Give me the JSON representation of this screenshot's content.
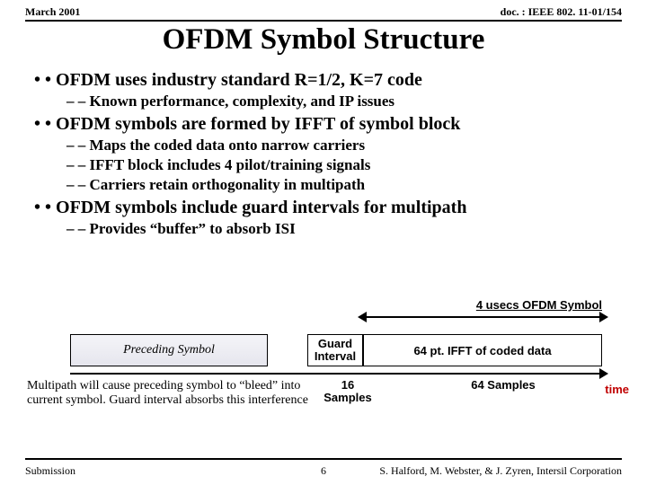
{
  "header": {
    "date": "March 2001",
    "doc": "doc. : IEEE 802. 11-01/154"
  },
  "title": "OFDM Symbol Structure",
  "bullets": {
    "b1_1": "OFDM uses industry standard R=1/2, K=7 code",
    "b2_1": "Known performance, complexity, and IP issues",
    "b1_2": "OFDM symbols are formed by IFFT of symbol block",
    "b2_2": "Maps the coded data onto narrow carriers",
    "b2_3": "IFFT block includes 4 pilot/training signals",
    "b2_4": "Carriers retain orthogonality in multipath",
    "b1_3": "OFDM symbols include guard intervals for multipath",
    "b2_5": "Provides “buffer” to absorb ISI"
  },
  "diagram": {
    "symbol_label": "4  usecs OFDM Symbol",
    "preceding": "Preceding Symbol",
    "guard": "Guard Interval",
    "ifft": "64 pt. IFFT of coded data",
    "samples16": "16 Samples",
    "samples64": "64 Samples",
    "caption": "Multipath will cause preceding symbol to “bleed” into current symbol. Guard interval absorbs this interference",
    "time": "time"
  },
  "footer": {
    "left": "Submission",
    "page": "6",
    "right": "S. Halford, M. Webster, & J. Zyren, Intersil Corporation"
  },
  "colors": {
    "text": "#000000",
    "time_color": "#c00000",
    "bg": "#ffffff"
  }
}
